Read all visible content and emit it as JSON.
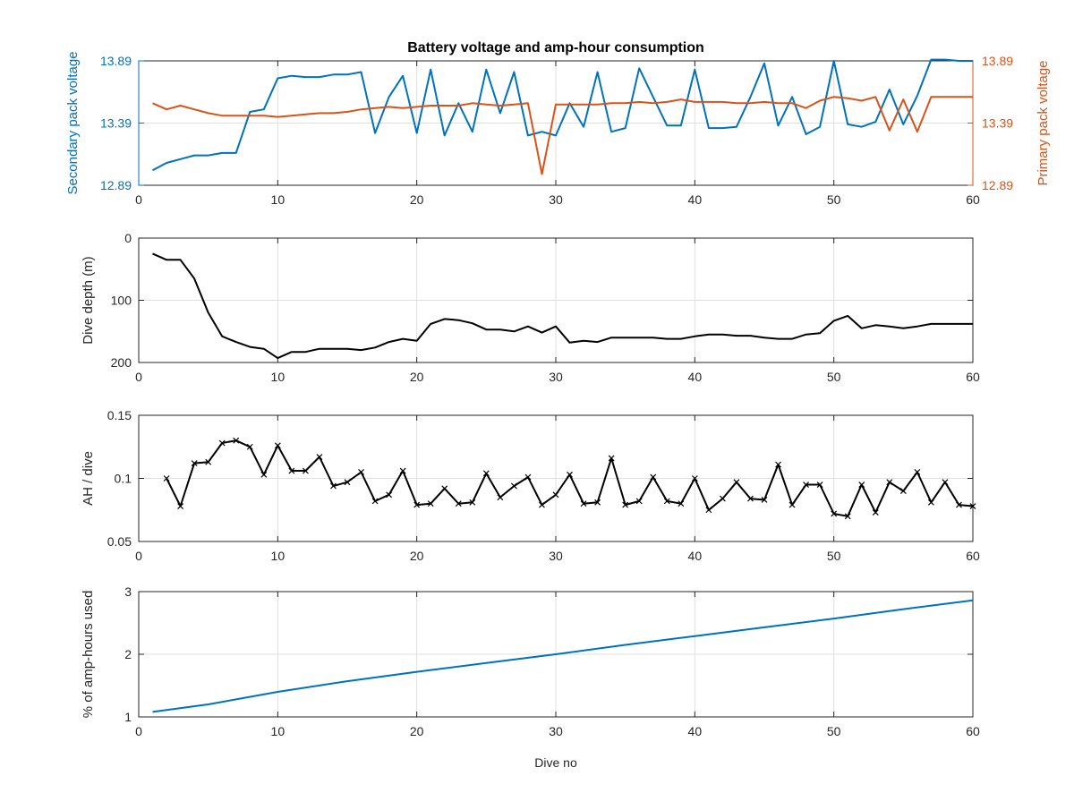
{
  "figure": {
    "title": "Battery voltage and amp-hour consumption",
    "xlabel": "Dive no"
  },
  "chart_data": [
    {
      "type": "line",
      "title": "Battery voltage and amp-hour consumption",
      "xlabel": "",
      "ylabel_left": "Secondary pack voltage",
      "ylabel_right": "Primary pack voltage",
      "xlim": [
        0,
        60
      ],
      "ylim": [
        12.89,
        13.89
      ],
      "xticks": [
        0,
        10,
        20,
        30,
        40,
        50,
        60
      ],
      "yticks": [
        12.89,
        13.39,
        13.89
      ],
      "ytick_labels": [
        "12.89",
        "13.39",
        "13.89"
      ],
      "grid": true,
      "colors": {
        "left": "#0072BD",
        "right": "#D95319"
      },
      "series": [
        {
          "axis": "left",
          "x": [
            1,
            2,
            3,
            4,
            5,
            6,
            7,
            8,
            9,
            10,
            11,
            12,
            13,
            14,
            15,
            16,
            17,
            18,
            19,
            20,
            21,
            22,
            23,
            24,
            25,
            26,
            27,
            28,
            29,
            30,
            31,
            32,
            33,
            34,
            35,
            36,
            37,
            38,
            39,
            40,
            41,
            42,
            43,
            44,
            45,
            46,
            47,
            48,
            49,
            50,
            51,
            52,
            53,
            54,
            55,
            56,
            57,
            58,
            59,
            60
          ],
          "y": [
            13.01,
            13.07,
            13.1,
            13.13,
            13.13,
            13.15,
            13.15,
            13.48,
            13.5,
            13.75,
            13.77,
            13.76,
            13.76,
            13.78,
            13.78,
            13.8,
            13.31,
            13.6,
            13.77,
            13.31,
            13.82,
            13.29,
            13.55,
            13.32,
            13.82,
            13.47,
            13.8,
            13.29,
            13.32,
            13.29,
            13.55,
            13.36,
            13.8,
            13.32,
            13.35,
            13.83,
            13.6,
            13.37,
            13.37,
            13.82,
            13.35,
            13.35,
            13.36,
            13.6,
            13.87,
            13.37,
            13.6,
            13.3,
            13.36,
            13.89,
            13.38,
            13.36,
            13.4,
            13.66,
            13.38,
            13.61,
            13.9,
            13.9,
            13.89,
            13.89
          ]
        },
        {
          "axis": "right",
          "x": [
            1,
            2,
            3,
            4,
            5,
            6,
            7,
            8,
            9,
            10,
            11,
            12,
            13,
            14,
            15,
            16,
            17,
            18,
            19,
            20,
            21,
            22,
            23,
            24,
            25,
            26,
            27,
            28,
            29,
            30,
            31,
            32,
            33,
            34,
            35,
            36,
            37,
            38,
            39,
            40,
            41,
            42,
            43,
            44,
            45,
            46,
            47,
            48,
            49,
            50,
            51,
            52,
            53,
            54,
            55,
            56,
            57,
            58,
            59,
            60
          ],
          "y": [
            13.55,
            13.5,
            13.53,
            13.5,
            13.47,
            13.45,
            13.45,
            13.45,
            13.45,
            13.44,
            13.45,
            13.46,
            13.47,
            13.47,
            13.48,
            13.5,
            13.51,
            13.52,
            13.51,
            13.52,
            13.53,
            13.53,
            13.53,
            13.55,
            13.54,
            13.53,
            13.54,
            13.55,
            12.98,
            13.54,
            13.54,
            13.54,
            13.54,
            13.55,
            13.55,
            13.56,
            13.55,
            13.56,
            13.58,
            13.56,
            13.56,
            13.56,
            13.55,
            13.55,
            13.56,
            13.55,
            13.55,
            13.51,
            13.57,
            13.6,
            13.59,
            13.57,
            13.6,
            13.33,
            13.58,
            13.32,
            13.6,
            13.6,
            13.6,
            13.6
          ]
        }
      ]
    },
    {
      "type": "line",
      "ylabel": "Dive depth (m)",
      "xlim": [
        0,
        60
      ],
      "ylim": [
        0,
        200
      ],
      "y_reversed": true,
      "xticks": [
        0,
        10,
        20,
        30,
        40,
        50,
        60
      ],
      "yticks": [
        0,
        100,
        200
      ],
      "grid": true,
      "color": "#000000",
      "series": [
        {
          "x": [
            1,
            2,
            3,
            4,
            5,
            6,
            7,
            8,
            9,
            10,
            11,
            12,
            13,
            14,
            15,
            16,
            17,
            18,
            19,
            20,
            21,
            22,
            23,
            24,
            25,
            26,
            27,
            28,
            29,
            30,
            31,
            32,
            33,
            34,
            35,
            36,
            37,
            38,
            39,
            40,
            41,
            42,
            43,
            44,
            45,
            46,
            47,
            48,
            49,
            50,
            51,
            52,
            53,
            54,
            55,
            56,
            57,
            58,
            59,
            60
          ],
          "y": [
            25,
            35,
            35,
            65,
            120,
            158,
            167,
            175,
            178,
            193,
            183,
            183,
            178,
            178,
            178,
            180,
            176,
            167,
            162,
            165,
            138,
            130,
            132,
            137,
            147,
            147,
            150,
            142,
            152,
            142,
            168,
            165,
            167,
            160,
            160,
            160,
            160,
            162,
            162,
            158,
            155,
            155,
            157,
            157,
            160,
            162,
            162,
            155,
            153,
            133,
            125,
            145,
            140,
            142,
            145,
            142,
            138,
            138,
            138,
            138
          ]
        }
      ]
    },
    {
      "type": "line",
      "ylabel": "AH / dive",
      "xlim": [
        0,
        60
      ],
      "ylim": [
        0.05,
        0.15
      ],
      "xticks": [
        0,
        10,
        20,
        30,
        40,
        50,
        60
      ],
      "yticks": [
        0.05,
        0.1,
        0.15
      ],
      "ytick_labels": [
        "0.05",
        "0.1",
        "0.15"
      ],
      "grid": true,
      "marker": "x",
      "color": "#000000",
      "series": [
        {
          "x": [
            2,
            3,
            4,
            5,
            6,
            7,
            8,
            9,
            10,
            11,
            12,
            13,
            14,
            15,
            16,
            17,
            18,
            19,
            20,
            21,
            22,
            23,
            24,
            25,
            26,
            27,
            28,
            29,
            30,
            31,
            32,
            33,
            34,
            35,
            36,
            37,
            38,
            39,
            40,
            41,
            42,
            43,
            44,
            45,
            46,
            47,
            48,
            49,
            50,
            51,
            52,
            53,
            54,
            55,
            56,
            57,
            58,
            59,
            60
          ],
          "y": [
            0.1,
            0.078,
            0.112,
            0.113,
            0.128,
            0.13,
            0.125,
            0.103,
            0.126,
            0.106,
            0.106,
            0.117,
            0.094,
            0.097,
            0.105,
            0.082,
            0.087,
            0.106,
            0.079,
            0.08,
            0.092,
            0.08,
            0.081,
            0.104,
            0.085,
            0.094,
            0.101,
            0.079,
            0.087,
            0.103,
            0.08,
            0.081,
            0.116,
            0.079,
            0.082,
            0.101,
            0.082,
            0.08,
            0.1,
            0.075,
            0.084,
            0.097,
            0.084,
            0.083,
            0.111,
            0.079,
            0.095,
            0.095,
            0.072,
            0.07,
            0.095,
            0.073,
            0.097,
            0.09,
            0.105,
            0.081,
            0.097,
            0.079,
            0.078
          ]
        }
      ]
    },
    {
      "type": "line",
      "ylabel": "% of amp-hours used",
      "xlabel": "Dive no",
      "xlim": [
        0,
        60
      ],
      "ylim": [
        1,
        3
      ],
      "xticks": [
        0,
        10,
        20,
        30,
        40,
        50,
        60
      ],
      "yticks": [
        1,
        2,
        3
      ],
      "grid": true,
      "color": "#0072BD",
      "series": [
        {
          "x": [
            1,
            5,
            10,
            15,
            20,
            25,
            30,
            35,
            40,
            45,
            50,
            55,
            60
          ],
          "y": [
            1.08,
            1.2,
            1.4,
            1.57,
            1.72,
            1.86,
            2.0,
            2.15,
            2.29,
            2.43,
            2.57,
            2.72,
            2.86
          ]
        }
      ]
    }
  ]
}
